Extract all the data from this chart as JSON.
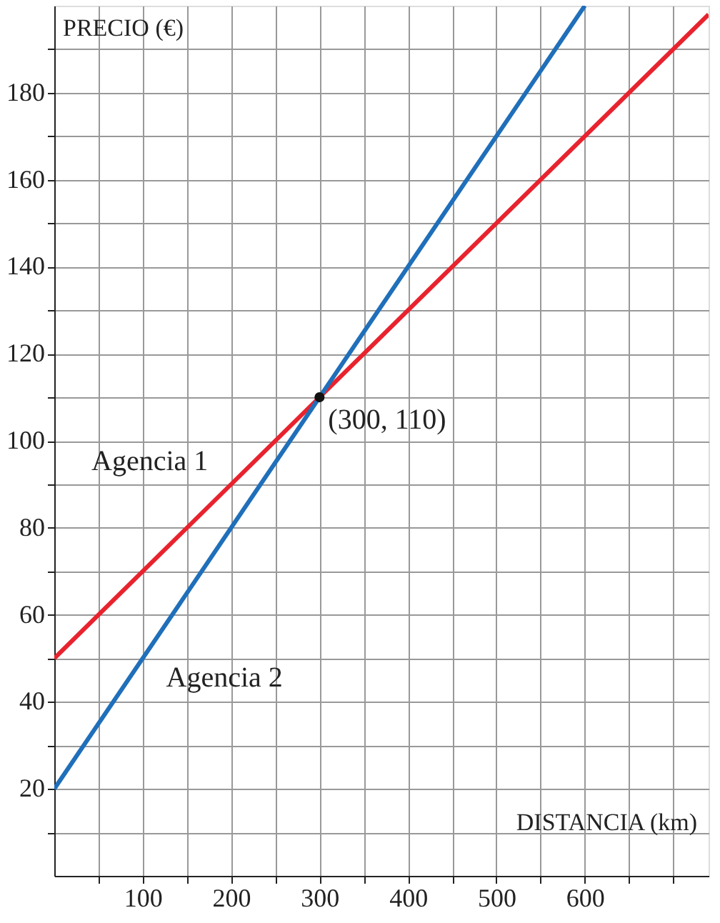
{
  "chart_data": {
    "type": "line",
    "xlabel": "DISTANCIA (km)",
    "ylabel": "PRECIO (€)",
    "series": [
      {
        "name": "Agencia 1",
        "color": "#e8232e",
        "x": [
          0,
          740
        ],
        "values": [
          50,
          198
        ]
      },
      {
        "name": "Agencia 2",
        "color": "#1f6fba",
        "x": [
          0,
          600
        ],
        "values": [
          20,
          200
        ]
      },
      {
        "type": "scatter",
        "color": "#111111",
        "x": [
          300
        ],
        "values": [
          110
        ],
        "marker": "circle"
      }
    ],
    "annotations": [
      {
        "text": "(300, 110)",
        "x": 300,
        "y": 110
      }
    ],
    "xlim": [
      0,
      740
    ],
    "ylim": [
      0,
      200
    ],
    "xticks": [
      {
        "value": 50,
        "label": null
      },
      100,
      {
        "value": 150,
        "label": null
      },
      200,
      {
        "value": 250,
        "label": null
      },
      300,
      {
        "value": 350,
        "label": null
      },
      400,
      {
        "value": 450,
        "label": null
      },
      500,
      {
        "value": 550,
        "label": null
      },
      600,
      {
        "value": 650,
        "label": null
      },
      {
        "value": 700,
        "label": null
      }
    ],
    "yticks": [
      {
        "value": 10,
        "label": null
      },
      20,
      {
        "value": 30,
        "label": null
      },
      40,
      {
        "value": 50,
        "label": null
      },
      60,
      {
        "value": 70,
        "label": null
      },
      80,
      {
        "value": 90,
        "label": null
      },
      100,
      {
        "value": 110,
        "label": null
      },
      120,
      {
        "value": 130,
        "label": null
      },
      140,
      {
        "value": 150,
        "label": null
      },
      160,
      {
        "value": 170,
        "label": null
      },
      180,
      {
        "value": 190,
        "label": null
      }
    ],
    "grid": true,
    "line_style": "solid"
  }
}
